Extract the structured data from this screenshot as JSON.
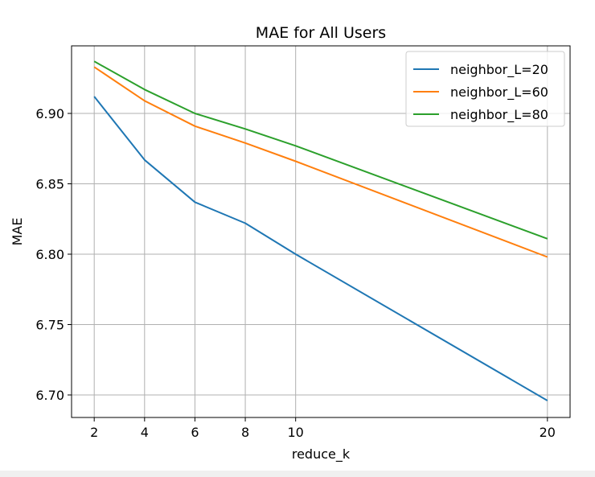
{
  "chart_data": {
    "type": "line",
    "title": "MAE for All Users",
    "xlabel": "reduce_k",
    "ylabel": "MAE",
    "x": [
      2,
      4,
      6,
      8,
      10,
      20
    ],
    "xticks": [
      2,
      4,
      6,
      8,
      10,
      20
    ],
    "yticks": [
      6.7,
      6.75,
      6.8,
      6.85,
      6.9
    ],
    "ytick_labels": [
      "6.70",
      "6.75",
      "6.80",
      "6.85",
      "6.90"
    ],
    "xlim": [
      1.1,
      20.9
    ],
    "ylim": [
      6.684,
      6.948
    ],
    "grid": true,
    "legend": "top-right",
    "series": [
      {
        "name": "neighbor_L=20",
        "color": "#1f77b4",
        "values": [
          6.912,
          6.867,
          6.837,
          6.822,
          6.8,
          6.696
        ]
      },
      {
        "name": "neighbor_L=60",
        "color": "#ff7f0e",
        "values": [
          6.933,
          6.909,
          6.891,
          6.879,
          6.866,
          6.798
        ]
      },
      {
        "name": "neighbor_L=80",
        "color": "#2ca02c",
        "values": [
          6.937,
          6.917,
          6.9,
          6.889,
          6.877,
          6.811
        ]
      }
    ]
  }
}
